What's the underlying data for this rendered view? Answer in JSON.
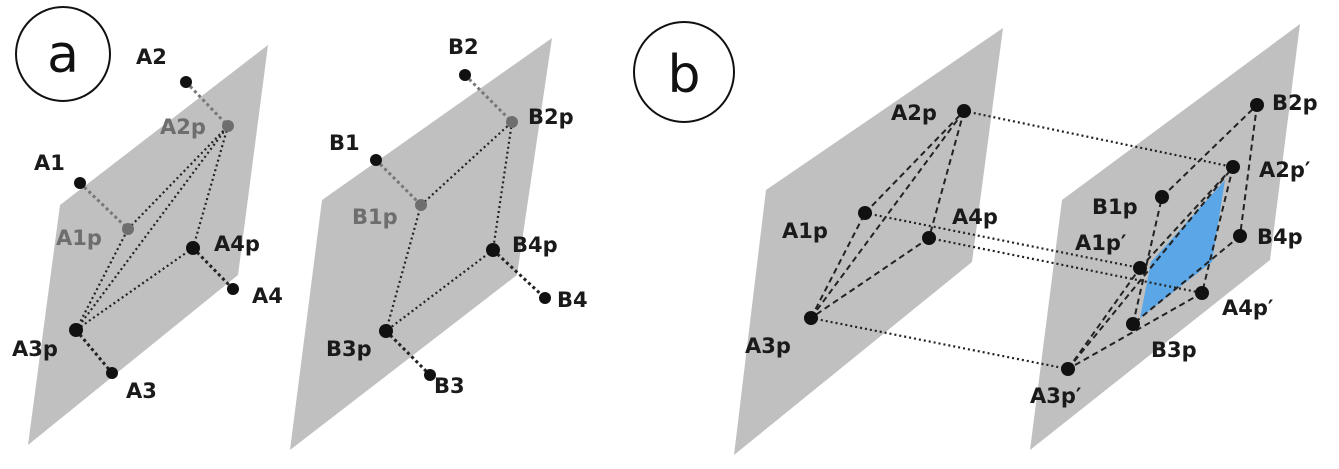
{
  "panels": {
    "a": {
      "letter": "a"
    },
    "b": {
      "letter": "b"
    }
  },
  "labels": {
    "A1": "A1",
    "A2": "A2",
    "A3": "A3",
    "A4": "A4",
    "A1p": "A1p",
    "A2p": "A2p",
    "A3p": "A3p",
    "A4p": "A4p",
    "B1": "B1",
    "B2": "B2",
    "B3": "B3",
    "B4": "B4",
    "B1p": "B1p",
    "B2p": "B2p",
    "B3p": "B3p",
    "B4p": "B4p",
    "A1p_prime": "A1p′",
    "A2p_prime": "A2p′",
    "A3p_prime": "A3p′",
    "A4p_prime": "A4p′"
  },
  "colors": {
    "plane": "#c0c0c0",
    "overlap": "#5aa6e6",
    "ink": "#111111"
  }
}
